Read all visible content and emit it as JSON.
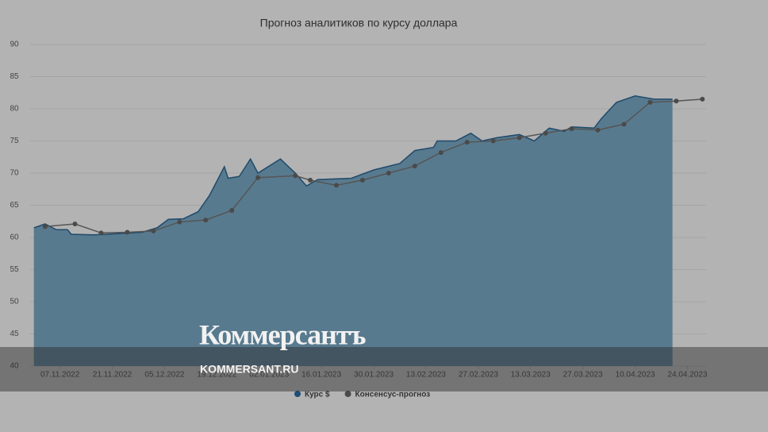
{
  "chart_data": {
    "type": "area_line",
    "title": "Прогноз аналитиков по курсу доллара",
    "xlim": [
      "30.10.2022",
      "29.04.2023"
    ],
    "xticks": [
      "07.11.2022",
      "21.11.2022",
      "05.12.2022",
      "19.12.2022",
      "02.01.2023",
      "16.01.2023",
      "30.01.2023",
      "13.02.2023",
      "27.02.2023",
      "13.03.2023",
      "27.03.2023",
      "10.04.2023",
      "24.04.2023"
    ],
    "ylim": [
      40,
      90
    ],
    "yticks": [
      40,
      45,
      50,
      55,
      60,
      65,
      70,
      75,
      80,
      85,
      90
    ],
    "grid": true,
    "series": [
      {
        "name": "Курс $",
        "color": "#1f4a6b",
        "fill": "#587a8e",
        "marker_color": "#1b4e78",
        "x": [
          "31.10.2022",
          "03.11.2022",
          "06.11.2022",
          "09.11.2022",
          "10.11.2022",
          "16.11.2022",
          "23.11.2022",
          "29.11.2022",
          "03.12.2022",
          "06.12.2022",
          "10.12.2022",
          "14.12.2022",
          "17.12.2022",
          "21.12.2022",
          "22.12.2022",
          "25.12.2022",
          "28.12.2022",
          "30.12.2022",
          "05.01.2023",
          "09.01.2023",
          "12.01.2023",
          "15.01.2023",
          "24.01.2023",
          "30.01.2023",
          "06.02.2023",
          "10.02.2023",
          "15.02.2023",
          "16.02.2023",
          "21.02.2023",
          "25.02.2023",
          "28.02.2023",
          "04.03.2023",
          "10.03.2023",
          "14.03.2023",
          "18.03.2023",
          "22.03.2023",
          "24.03.2023",
          "30.03.2023",
          "01.04.2023",
          "05.04.2023",
          "10.04.2023",
          "15.04.2023",
          "20.04.2023"
        ],
        "values": [
          61.5,
          62.1,
          61.2,
          61.2,
          60.5,
          60.4,
          60.6,
          60.8,
          61.5,
          62.8,
          62.9,
          64.0,
          66.5,
          71.0,
          69.2,
          69.5,
          72.2,
          70.0,
          72.2,
          70.0,
          68.0,
          69.0,
          69.2,
          70.5,
          71.5,
          73.5,
          74.0,
          75.0,
          75.0,
          76.2,
          75.0,
          75.5,
          76.0,
          75.0,
          77.0,
          76.5,
          77.2,
          77.0,
          78.5,
          81.0,
          82.0,
          81.5,
          81.5
        ]
      },
      {
        "name": "Консенсус-прогноз",
        "color": "#555555",
        "marker_color": "#4a4a4a",
        "x": [
          "03.11.2022",
          "11.11.2022",
          "18.11.2022",
          "25.11.2022",
          "02.12.2022",
          "09.12.2022",
          "16.12.2022",
          "23.12.2022",
          "30.12.2022",
          "09.01.2023",
          "13.01.2023",
          "20.01.2023",
          "27.01.2023",
          "03.02.2023",
          "10.02.2023",
          "17.02.2023",
          "24.02.2023",
          "03.03.2023",
          "10.03.2023",
          "17.03.2023",
          "24.03.2023",
          "31.03.2023",
          "07.04.2023",
          "14.04.2023",
          "21.04.2023",
          "28.04.2023"
        ],
        "values": [
          61.7,
          62.1,
          60.7,
          60.8,
          61.0,
          62.4,
          62.7,
          64.2,
          69.3,
          69.6,
          68.9,
          68.1,
          68.9,
          70.0,
          71.1,
          73.2,
          74.8,
          75.0,
          75.5,
          76.2,
          76.9,
          76.7,
          77.6,
          81.0,
          81.2,
          81.5
        ]
      }
    ]
  },
  "watermark": {
    "logo": "Коммерсантъ",
    "site": "KOMMERSANT.RU"
  }
}
